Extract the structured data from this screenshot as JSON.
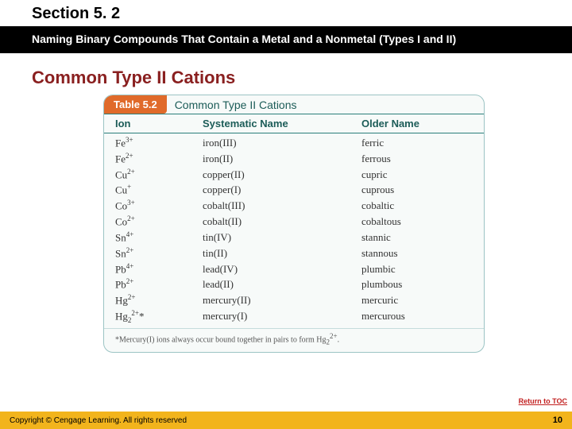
{
  "header": {
    "section_label": "Section 5. 2",
    "subtitle": "Naming Binary Compounds That Contain a Metal and a Nonmetal (Types I and II)"
  },
  "heading": "Common Type II Cations",
  "table": {
    "badge": "Table 5.2",
    "caption": "Common Type II Cations",
    "columns": {
      "ion": "Ion",
      "systematic": "Systematic Name",
      "older": "Older Name"
    },
    "rows": [
      {
        "ion_html": "Fe<sup>3+</sup>",
        "sys": "iron(III)",
        "old": "ferric"
      },
      {
        "ion_html": "Fe<sup>2+</sup>",
        "sys": "iron(II)",
        "old": "ferrous"
      },
      {
        "ion_html": "Cu<sup>2+</sup>",
        "sys": "copper(II)",
        "old": "cupric"
      },
      {
        "ion_html": "Cu<sup>+</sup>",
        "sys": "copper(I)",
        "old": "cuprous"
      },
      {
        "ion_html": "Co<sup>3+</sup>",
        "sys": "cobalt(III)",
        "old": "cobaltic"
      },
      {
        "ion_html": "Co<sup>2+</sup>",
        "sys": "cobalt(II)",
        "old": "cobaltous"
      },
      {
        "ion_html": "Sn<sup>4+</sup>",
        "sys": "tin(IV)",
        "old": "stannic"
      },
      {
        "ion_html": "Sn<sup>2+</sup>",
        "sys": "tin(II)",
        "old": "stannous"
      },
      {
        "ion_html": "Pb<sup>4+</sup>",
        "sys": "lead(IV)",
        "old": "plumbic"
      },
      {
        "ion_html": "Pb<sup>2+</sup>",
        "sys": "lead(II)",
        "old": "plumbous"
      },
      {
        "ion_html": "Hg<sup>2+</sup>",
        "sys": "mercury(II)",
        "old": "mercuric"
      },
      {
        "ion_html": "Hg<sub>2</sub><sup>2+</sup>*",
        "sys": "mercury(I)",
        "old": "mercurous"
      }
    ],
    "footnote_html": "*Mercury(I) ions always occur bound together in pairs to form Hg<sub>2</sub><sup>2+</sup>."
  },
  "return_toc": "Return to TOC",
  "footer": {
    "copyright": "Copyright © Cengage Learning. All rights reserved",
    "page": "10"
  },
  "colors": {
    "accent_red": "#8a2020",
    "header_black": "#000000",
    "footer_yellow": "#f2b41c",
    "table_border": "#9cc4c4",
    "table_header_text": "#1c5c58",
    "badge_bg": "#e06a2a"
  }
}
